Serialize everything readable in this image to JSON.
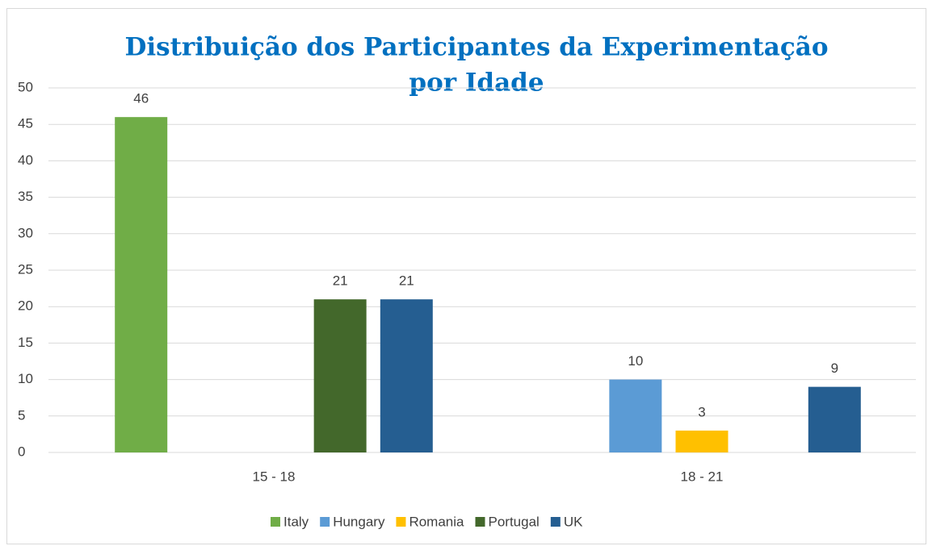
{
  "chart_data": {
    "type": "bar",
    "title": [
      "Distribuição dos Participantes da Experimentação",
      "por Idade"
    ],
    "categories": [
      "15 - 18",
      "18 - 21"
    ],
    "series": [
      {
        "name": "Italy",
        "color": "#70ad47",
        "values": [
          46,
          null
        ]
      },
      {
        "name": "Hungary",
        "color": "#5b9bd5",
        "values": [
          null,
          10
        ]
      },
      {
        "name": "Romania",
        "color": "#ffc000",
        "values": [
          null,
          3
        ]
      },
      {
        "name": "Portugal",
        "color": "#43682b",
        "values": [
          21,
          null
        ]
      },
      {
        "name": "UK",
        "color": "#255e91",
        "values": [
          21,
          9
        ]
      }
    ],
    "ylim": [
      0,
      50
    ],
    "yticks": [
      0,
      5,
      10,
      15,
      20,
      25,
      30,
      35,
      40,
      45,
      50
    ],
    "grid": true,
    "legend": "bottom"
  }
}
